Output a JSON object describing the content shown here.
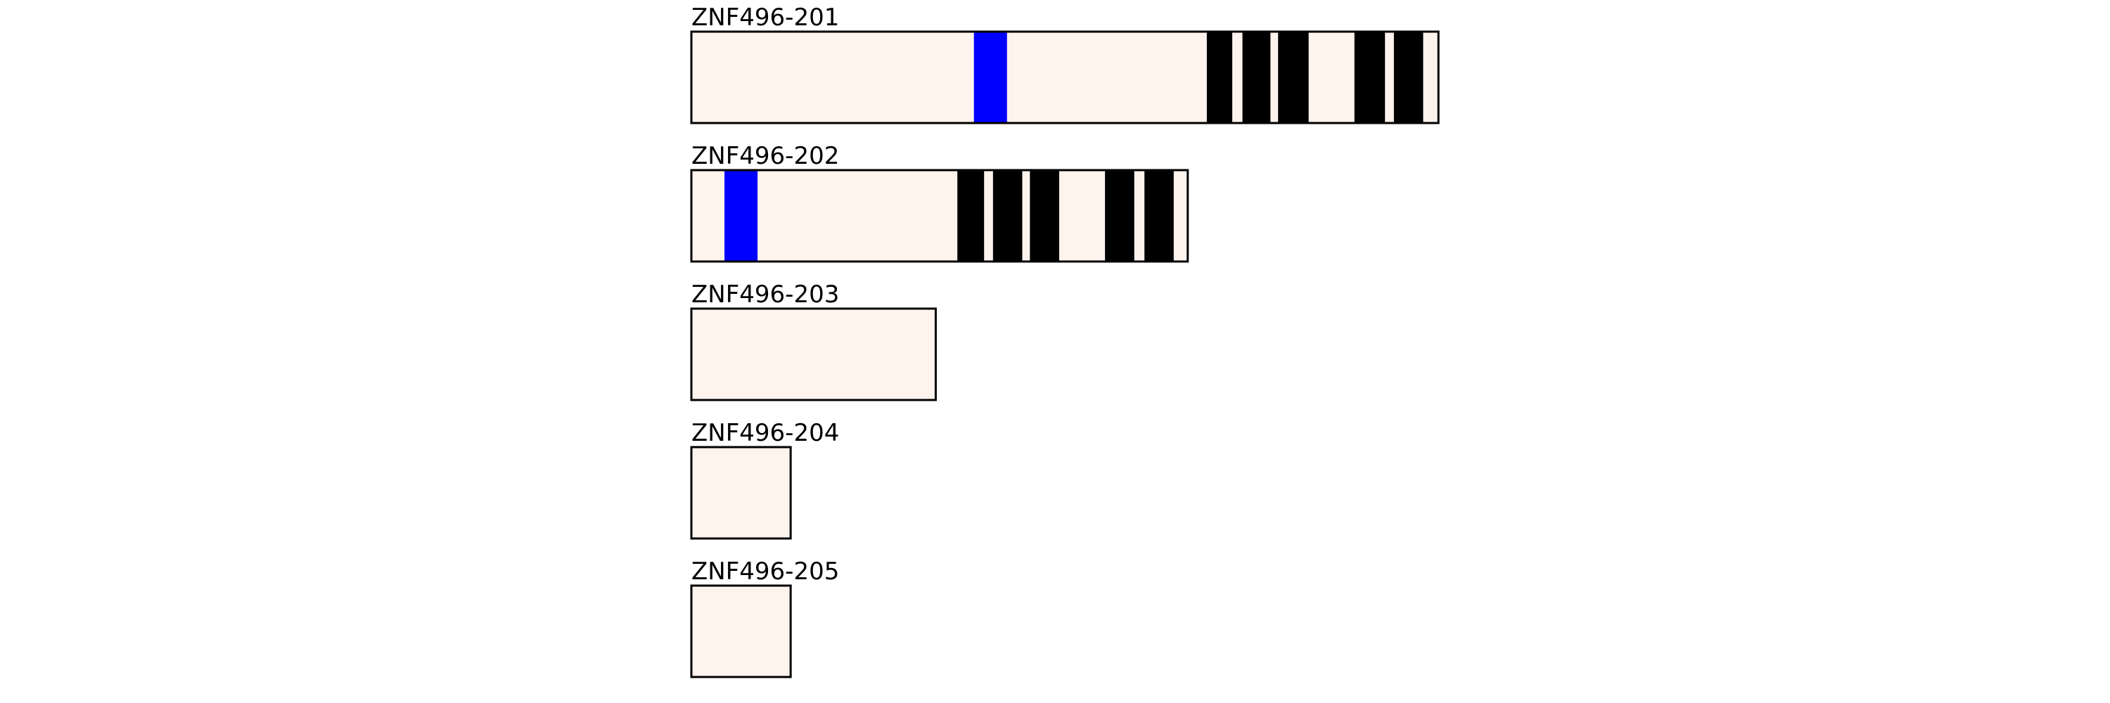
{
  "colors": {
    "protein_fill": "#fff3ee",
    "outline": "#000000",
    "blue_domain": "#0000ff",
    "black_domain": "#000000",
    "background": "#ffffff"
  },
  "transcripts": [
    {
      "name": "ZNF496-201",
      "length": 587,
      "features": [
        {
          "kind": "blue",
          "start": 222,
          "end": 248
        },
        {
          "kind": "black",
          "start": 405,
          "end": 425
        },
        {
          "kind": "black",
          "start": 433,
          "end": 455
        },
        {
          "kind": "black",
          "start": 461,
          "end": 485
        },
        {
          "kind": "black",
          "start": 521,
          "end": 545
        },
        {
          "kind": "black",
          "start": 552,
          "end": 575
        }
      ]
    },
    {
      "name": "ZNF496-202",
      "length": 390,
      "features": [
        {
          "kind": "blue",
          "start": 26,
          "end": 52
        },
        {
          "kind": "black",
          "start": 209,
          "end": 230
        },
        {
          "kind": "black",
          "start": 237,
          "end": 260
        },
        {
          "kind": "black",
          "start": 266,
          "end": 289
        },
        {
          "kind": "black",
          "start": 325,
          "end": 348
        },
        {
          "kind": "black",
          "start": 356,
          "end": 379
        }
      ]
    },
    {
      "name": "ZNF496-203",
      "length": 192,
      "features": []
    },
    {
      "name": "ZNF496-204",
      "length": 78,
      "features": []
    },
    {
      "name": "ZNF496-205",
      "length": 78,
      "features": []
    }
  ]
}
